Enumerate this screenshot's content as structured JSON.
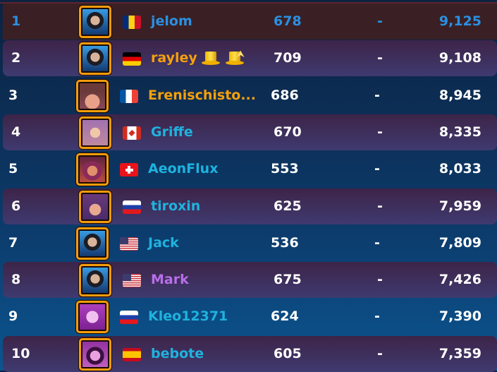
{
  "colors": {
    "name_cyan": "#1fb2de",
    "name_orange": "#f5a00c",
    "name_purple": "#b86ee8",
    "self_blue": "#2a90e2",
    "avatar_border": "#f59c0c"
  },
  "rows": [
    {
      "rank": "1",
      "name": "jelom",
      "level": "678",
      "change": "-",
      "score": "9,125",
      "flag": "romania",
      "avatar": "man-dark-hair",
      "style": "self"
    },
    {
      "rank": "2",
      "name": "rayley",
      "level": "709",
      "change": "-",
      "score": "9,108",
      "flag": "germany",
      "avatar": "man-dark-hair",
      "style": "orange",
      "badges": [
        "gold-top-hat-icon",
        "gold-top-hat-upgrade-icon"
      ]
    },
    {
      "rank": "3",
      "name": "Erenischisto...",
      "level": "686",
      "change": "-",
      "score": "8,945",
      "flag": "france",
      "avatar": "woman-hat",
      "style": "orange"
    },
    {
      "rank": "4",
      "name": "Griffe",
      "level": "670",
      "change": "-",
      "score": "8,335",
      "flag": "canada",
      "avatar": "woman-blonde",
      "style": "cyan"
    },
    {
      "rank": "5",
      "name": "AeonFlux",
      "level": "553",
      "change": "-",
      "score": "8,033",
      "flag": "switzerland",
      "avatar": "woman-red-hair",
      "style": "cyan"
    },
    {
      "rank": "6",
      "name": "tiroxin",
      "level": "625",
      "change": "-",
      "score": "7,959",
      "flag": "russia",
      "avatar": "woman-brown-hair",
      "style": "cyan"
    },
    {
      "rank": "7",
      "name": "Jack",
      "level": "536",
      "change": "-",
      "score": "7,809",
      "flag": "usa",
      "avatar": "man-dark-hair",
      "style": "cyan"
    },
    {
      "rank": "8",
      "name": "Mark",
      "level": "675",
      "change": "-",
      "score": "7,426",
      "flag": "usa",
      "avatar": "man-dark-hair",
      "style": "purple"
    },
    {
      "rank": "9",
      "name": "Kleo12371",
      "level": "624",
      "change": "-",
      "score": "7,390",
      "flag": "russia",
      "avatar": "woman-pink",
      "style": "cyan"
    },
    {
      "rank": "10",
      "name": "bebote",
      "level": "605",
      "change": "-",
      "score": "7,359",
      "flag": "spain",
      "avatar": "woman-pink-dark-hair",
      "style": "cyan"
    }
  ]
}
